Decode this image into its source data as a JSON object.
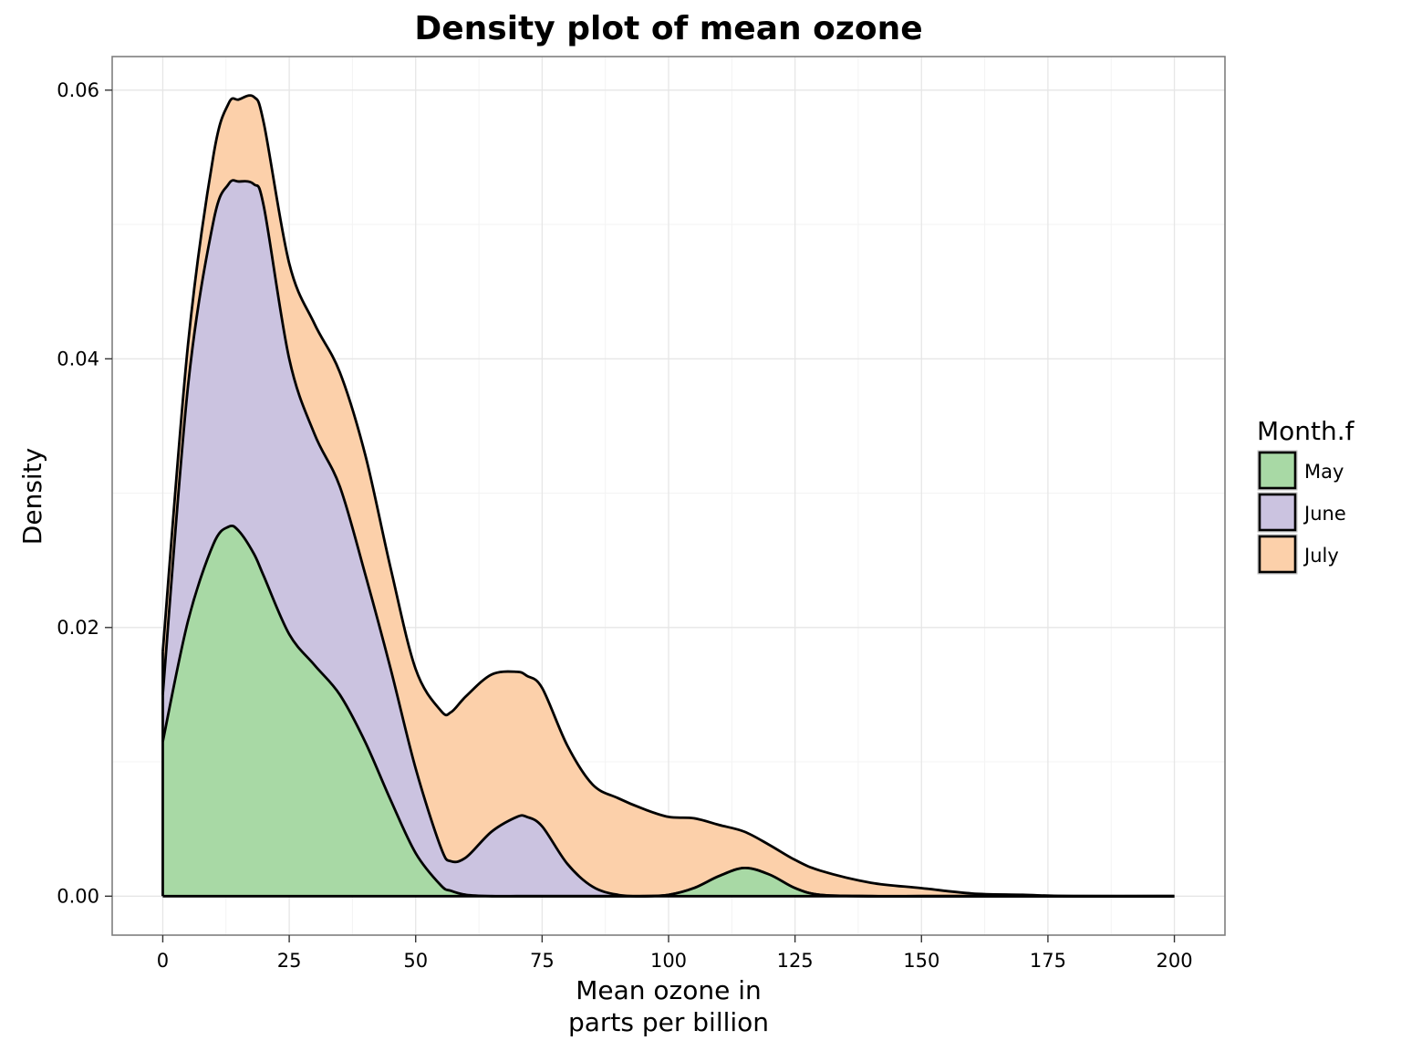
{
  "chart_data": {
    "type": "area",
    "stacked": true,
    "title": "Density plot of mean ozone",
    "xlabel": [
      "Mean ozone in",
      "parts per billion"
    ],
    "ylabel": "Density",
    "xlim": [
      -10,
      210
    ],
    "ylim": [
      -0.0029,
      0.0625
    ],
    "xticks": [
      0,
      25,
      50,
      75,
      100,
      125,
      150,
      175,
      200
    ],
    "yticks": [
      0.0,
      0.02,
      0.04,
      0.06
    ],
    "ytick_labels": [
      "0.00",
      "0.02",
      "0.04",
      "0.06"
    ],
    "grid": true,
    "legend": {
      "title": "Month.f",
      "position": "right"
    },
    "x": [
      0,
      5,
      10,
      13,
      15,
      18,
      20,
      25,
      30,
      35,
      40,
      45,
      50,
      55,
      57,
      60,
      65,
      70,
      72,
      75,
      80,
      85,
      90,
      95,
      100,
      105,
      110,
      115,
      120,
      125,
      130,
      140,
      150,
      160,
      170,
      180,
      200
    ],
    "series": [
      {
        "name": "May",
        "color": "#a8d9a5",
        "values": [
          0.0115,
          0.0205,
          0.0262,
          0.0275,
          0.0272,
          0.0255,
          0.0238,
          0.0195,
          0.0172,
          0.015,
          0.0115,
          0.0072,
          0.0032,
          0.0008,
          0.0004,
          0.0001,
          0,
          0,
          0,
          0,
          0,
          0,
          0,
          0,
          0.0001,
          0.0006,
          0.0015,
          0.0021,
          0.0016,
          0.0006,
          0.0001,
          0,
          0,
          0,
          0,
          0,
          0
        ]
      },
      {
        "name": "June",
        "color": "#cbc3e0",
        "values": [
          0.0035,
          0.0175,
          0.024,
          0.0255,
          0.026,
          0.0275,
          0.0275,
          0.0205,
          0.0172,
          0.0155,
          0.0125,
          0.0098,
          0.0063,
          0.0028,
          0.0022,
          0.0028,
          0.0048,
          0.0059,
          0.0059,
          0.0052,
          0.0024,
          0.0007,
          0.0001,
          0,
          0,
          0,
          0,
          0,
          0,
          0,
          0,
          0,
          0,
          0,
          0,
          0,
          0
        ]
      },
      {
        "name": "July",
        "color": "#fcd0aa",
        "values": [
          0.0032,
          0.0031,
          0.0049,
          0.006,
          0.0061,
          0.0065,
          0.0062,
          0.0071,
          0.0082,
          0.0085,
          0.0089,
          0.0075,
          0.0074,
          0.0102,
          0.0111,
          0.012,
          0.0117,
          0.0108,
          0.0105,
          0.0103,
          0.0088,
          0.0076,
          0.0072,
          0.0065,
          0.0058,
          0.0052,
          0.0038,
          0.0027,
          0.0022,
          0.0021,
          0.0018,
          0.001,
          0.0006,
          0.0002,
          0.0001,
          0,
          0
        ]
      }
    ]
  }
}
